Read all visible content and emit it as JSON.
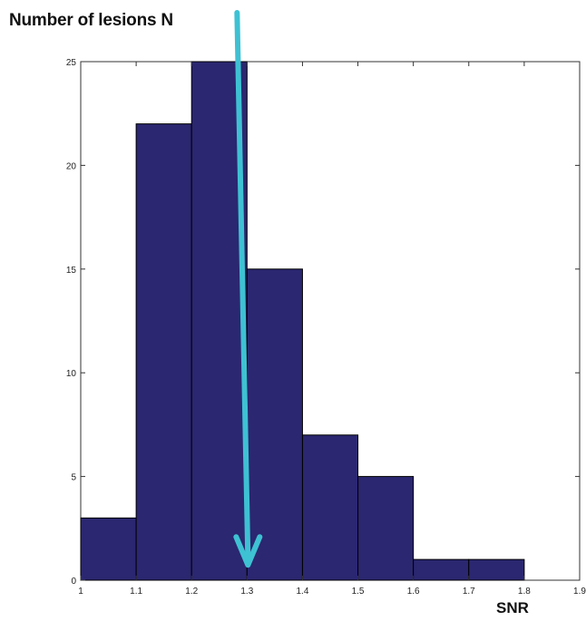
{
  "chart_data": {
    "type": "bar",
    "histogram": true,
    "bin_edges": [
      1.0,
      1.1,
      1.2,
      1.3,
      1.4,
      1.5,
      1.6,
      1.7,
      1.8
    ],
    "values": [
      3,
      22,
      25,
      15,
      7,
      5,
      1,
      1
    ],
    "ylabel": "Number of lesions  N",
    "xlabel": "SNR",
    "xlim": [
      1.0,
      1.9
    ],
    "ylim": [
      0,
      25
    ],
    "xticks": [
      "1",
      "1.1",
      "1.2",
      "1.3",
      "1.4",
      "1.5",
      "1.6",
      "1.7",
      "1.8",
      "1.9"
    ],
    "yticks": [
      "0",
      "5",
      "10",
      "15",
      "20",
      "25"
    ],
    "grid": false,
    "bar_color": "#2b2770",
    "arrow_color": "#3ec1d3",
    "annotation": {
      "type": "arrow",
      "x": 1.3,
      "from_y": 27,
      "to_y": 0.6
    }
  }
}
